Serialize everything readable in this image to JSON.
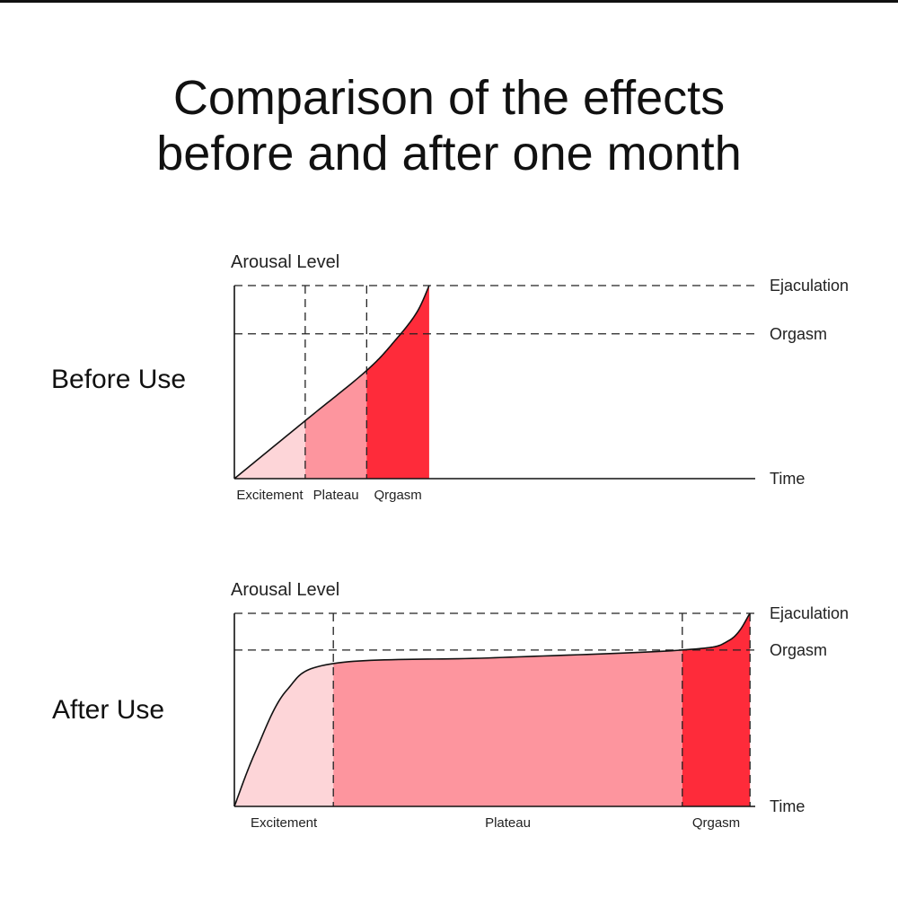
{
  "title": {
    "line1": "Comparison of the effects",
    "line2": "before and after one month"
  },
  "colors": {
    "excitement": "#fdd5d8",
    "plateau": "#fd959e",
    "orgasm": "#fe2b3a",
    "axis": "#111111",
    "dash": "#222222"
  },
  "chart_data": [
    {
      "type": "area",
      "row_label": "Before Use",
      "ylabel": "Arousal Level",
      "xlabel": "Time",
      "reference_lines": [
        {
          "name": "Ejaculation",
          "y": 1.0
        },
        {
          "name": "Orgasm",
          "y": 0.75
        }
      ],
      "phases": [
        {
          "name": "Excitement",
          "x_start": 0,
          "x_end": 0.136,
          "color": "excitement"
        },
        {
          "name": "Plateau",
          "x_start": 0.136,
          "x_end": 0.254,
          "color": "plateau"
        },
        {
          "name": "Qrgasm",
          "x_start": 0.254,
          "x_end": 0.374,
          "color": "orgasm"
        }
      ],
      "curve": [
        {
          "x": 0,
          "y": 0
        },
        {
          "x": 0.136,
          "y": 0.3
        },
        {
          "x": 0.254,
          "y": 0.56
        },
        {
          "x": 0.31,
          "y": 0.72
        },
        {
          "x": 0.35,
          "y": 0.86
        },
        {
          "x": 0.374,
          "y": 1.0
        }
      ]
    },
    {
      "type": "area",
      "row_label": "After Use",
      "ylabel": "Arousal Level",
      "xlabel": "Time",
      "reference_lines": [
        {
          "name": "Ejaculation",
          "y": 1.0
        },
        {
          "name": "Orgasm",
          "y": 0.81
        }
      ],
      "phases": [
        {
          "name": "Excitement",
          "x_start": 0,
          "x_end": 0.19,
          "color": "excitement"
        },
        {
          "name": "Plateau",
          "x_start": 0.19,
          "x_end": 0.86,
          "color": "plateau"
        },
        {
          "name": "Qrgasm",
          "x_start": 0.86,
          "x_end": 0.99,
          "color": "orgasm"
        }
      ],
      "curve": [
        {
          "x": 0,
          "y": 0
        },
        {
          "x": 0.04,
          "y": 0.28
        },
        {
          "x": 0.1,
          "y": 0.6
        },
        {
          "x": 0.19,
          "y": 0.74
        },
        {
          "x": 0.5,
          "y": 0.77
        },
        {
          "x": 0.86,
          "y": 0.81
        },
        {
          "x": 0.95,
          "y": 0.86
        },
        {
          "x": 0.99,
          "y": 1.0
        }
      ]
    }
  ]
}
